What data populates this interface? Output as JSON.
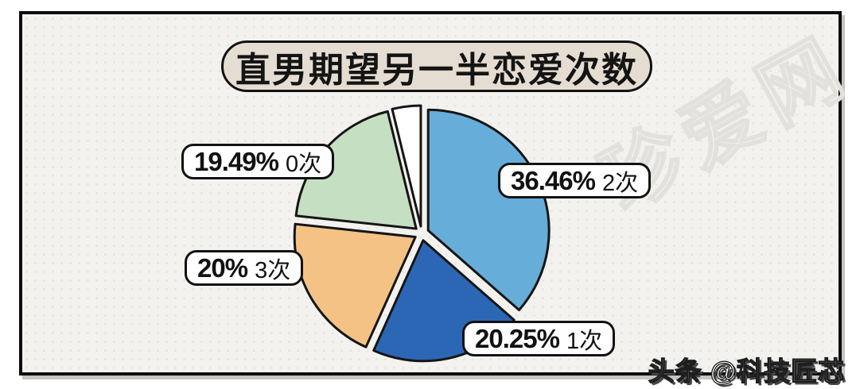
{
  "title": "直男期望另一半恋爱次数",
  "watermark": "珍爱网",
  "attribution": "头条 @科技匠芯",
  "chart_data": {
    "type": "pie",
    "title": "直男期望另一半恋爱次数",
    "direction": "clockwise",
    "start_angle_deg": 0,
    "total": 100,
    "slices": [
      {
        "label": "2次",
        "pct_text": "36.46%",
        "value": 36.46,
        "color": "#66add9"
      },
      {
        "label": "1次",
        "pct_text": "20.25%",
        "value": 20.25,
        "color": "#2c67b6"
      },
      {
        "label": "3次",
        "pct_text": "20%",
        "value": 20.0,
        "color": "#f5c286"
      },
      {
        "label": "0次",
        "pct_text": "19.49%",
        "value": 19.49,
        "color": "#c5dfc3"
      },
      {
        "label": "",
        "pct_text": "",
        "value": 3.8,
        "color": "#ffffff"
      }
    ],
    "outline_color": "#151515",
    "legend_position": "none",
    "grid": false
  }
}
